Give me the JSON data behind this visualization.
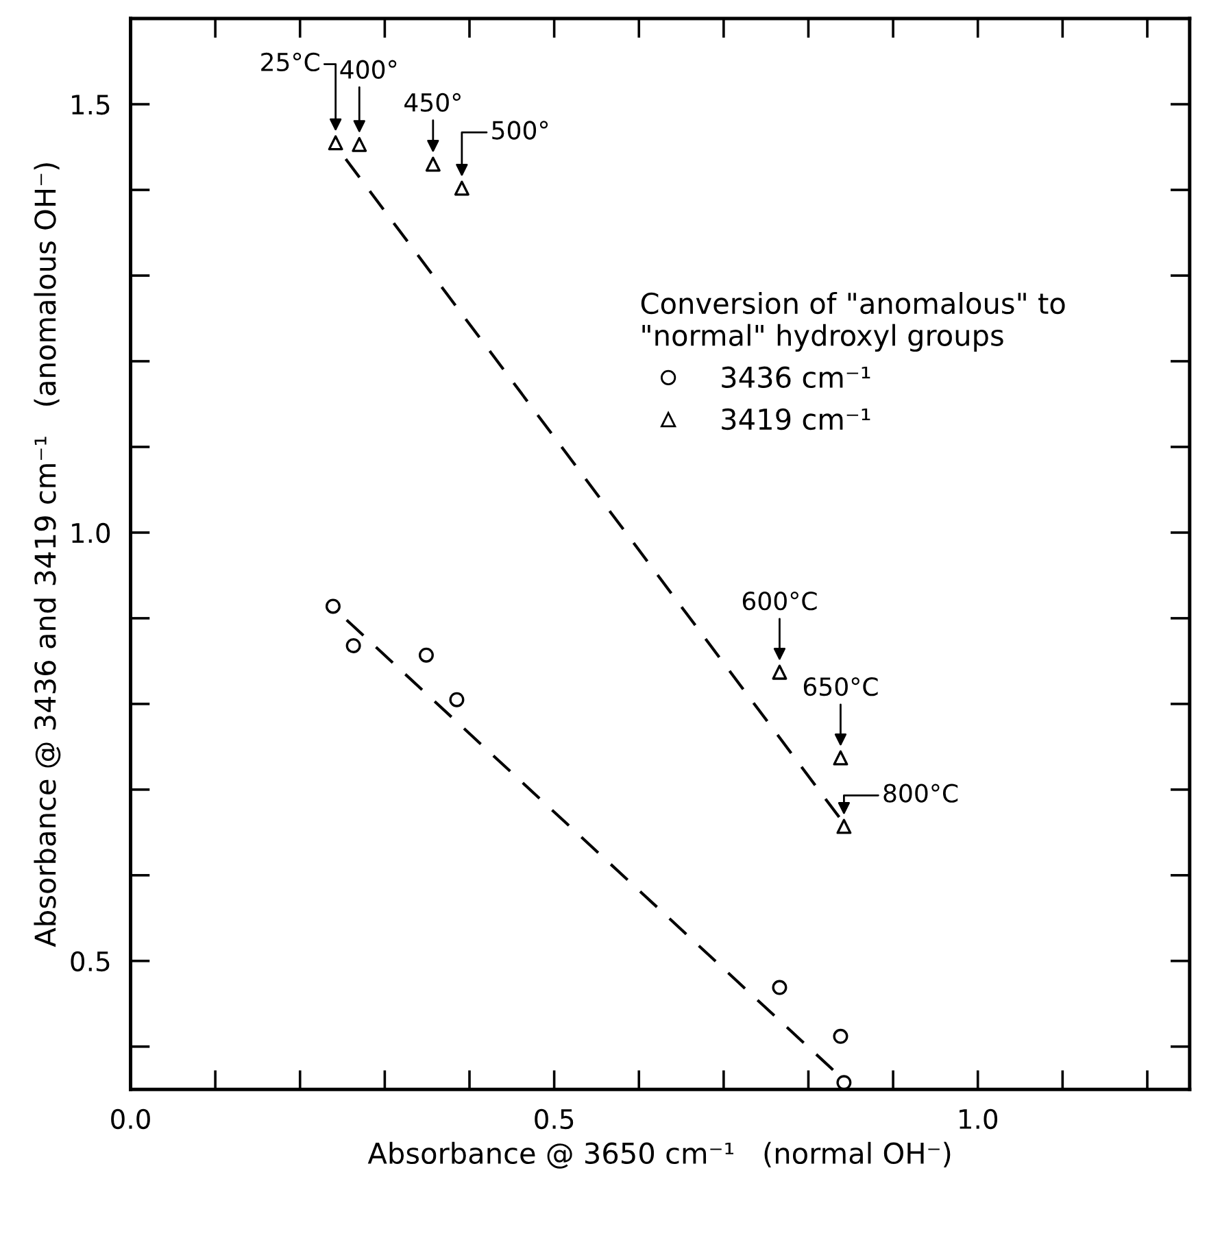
{
  "chart_data": {
    "type": "scatter",
    "xlabel": "Absorbance @ 3650 cm⁻¹   (normal OH⁻)",
    "ylabel": "Absorbance @ 3436 and 3419 cm⁻¹   (anomalous OH⁻)",
    "legend_title": "Conversion of \"anomalous\" to\n\"normal\" hydroxyl groups",
    "legend": "top right",
    "grid": false,
    "xlim": [
      0.0,
      1.25
    ],
    "ylim": [
      0.35,
      1.6
    ],
    "xticks": [
      {
        "value": 0,
        "label": "0.0"
      },
      {
        "value": 0.1,
        "label": null
      },
      {
        "value": 0.2,
        "label": null
      },
      {
        "value": 0.3,
        "label": null
      },
      {
        "value": 0.4,
        "label": null
      },
      0.5,
      {
        "value": 0.6,
        "label": null
      },
      {
        "value": 0.7,
        "label": null
      },
      {
        "value": 0.8,
        "label": null
      },
      {
        "value": 0.9,
        "label": null
      },
      {
        "value": 1,
        "label": "1.0"
      },
      {
        "value": 1.1,
        "label": null
      },
      {
        "value": 1.2,
        "label": null
      }
    ],
    "yticks": [
      {
        "value": 0.4,
        "label": null
      },
      0.5,
      {
        "value": 0.6,
        "label": null
      },
      {
        "value": 0.7,
        "label": null
      },
      {
        "value": 0.8,
        "label": null
      },
      {
        "value": 0.9,
        "label": null
      },
      {
        "value": 1,
        "label": "1.0"
      },
      {
        "value": 1.1,
        "label": null
      },
      {
        "value": 1.2,
        "label": null
      },
      {
        "value": 1.3,
        "label": null
      },
      {
        "value": 1.4,
        "label": null
      },
      1.5
    ],
    "series": [
      {
        "name": "3436 cm⁻¹",
        "marker": "circle",
        "color": "#000000",
        "x": [
          0.239,
          0.263,
          0.349,
          0.385,
          0.766,
          0.838,
          0.842
        ],
        "values": [
          0.914,
          0.868,
          0.857,
          0.805,
          0.469,
          0.412,
          0.358
        ]
      },
      {
        "name": "3419 cm⁻¹",
        "marker": "triangle",
        "color": "#000000",
        "x": [
          0.242,
          0.27,
          0.357,
          0.391,
          0.766,
          0.838,
          0.842
        ],
        "values": [
          1.455,
          1.453,
          1.43,
          1.402,
          0.837,
          0.737,
          0.657
        ]
      },
      {
        "type": "line",
        "line_style": "dashed",
        "color": "#000000",
        "x": [
          0.254,
          0.84
        ],
        "values": [
          1.436,
          0.663
        ]
      },
      {
        "type": "line",
        "line_style": "dashed",
        "color": "#000000",
        "x": [
          0.255,
          0.842
        ],
        "values": [
          0.898,
          0.361
        ]
      }
    ],
    "annotations": [
      {
        "text": "25°C",
        "x": 0.242,
        "y": 1.455
      },
      {
        "text": "400°",
        "x": 0.27,
        "y": 1.453
      },
      {
        "text": "450°",
        "x": 0.357,
        "y": 1.43
      },
      {
        "text": "500°",
        "x": 0.391,
        "y": 1.402
      },
      {
        "text": "600°C",
        "x": 0.766,
        "y": 0.837
      },
      {
        "text": "650°C",
        "x": 0.838,
        "y": 0.737
      },
      {
        "text": "800°C",
        "x": 0.842,
        "y": 0.657
      }
    ]
  }
}
